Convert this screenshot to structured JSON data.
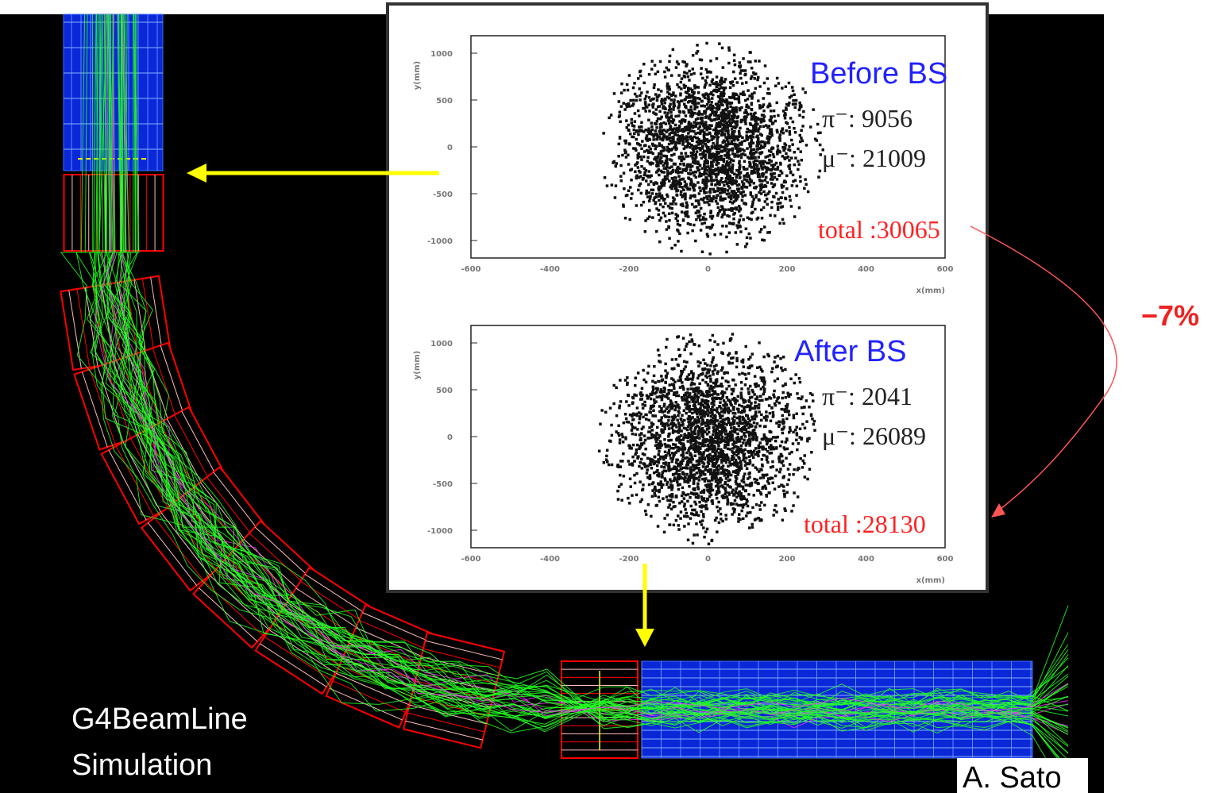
{
  "caption": [
    "G4BeamLine",
    "Simulation"
  ],
  "credit": "A. Sato",
  "reduction": "−7%",
  "panels": [
    {
      "title": "Before BS",
      "pi": "π⁻:   9056",
      "mu": "μ⁻: 21009",
      "total": "total :30065",
      "x_label": "x(mm)",
      "y_label": "y(mm)",
      "x_ticks": [
        "-600",
        "-400",
        "-200",
        "0",
        "200",
        "400",
        "600"
      ],
      "y_ticks": [
        "1000",
        "500",
        "0",
        "-500",
        "-1000"
      ]
    },
    {
      "title": "After BS",
      "pi": "π⁻:   2041",
      "mu": "μ⁻: 26089",
      "total": "total :28130",
      "x_label": "x(mm)",
      "y_label": "y(mm)",
      "x_ticks": [
        "-600",
        "-400",
        "-200",
        "0",
        "200",
        "400",
        "600"
      ],
      "y_ticks": [
        "1000",
        "500",
        "0",
        "-500",
        "-1000"
      ]
    }
  ]
}
